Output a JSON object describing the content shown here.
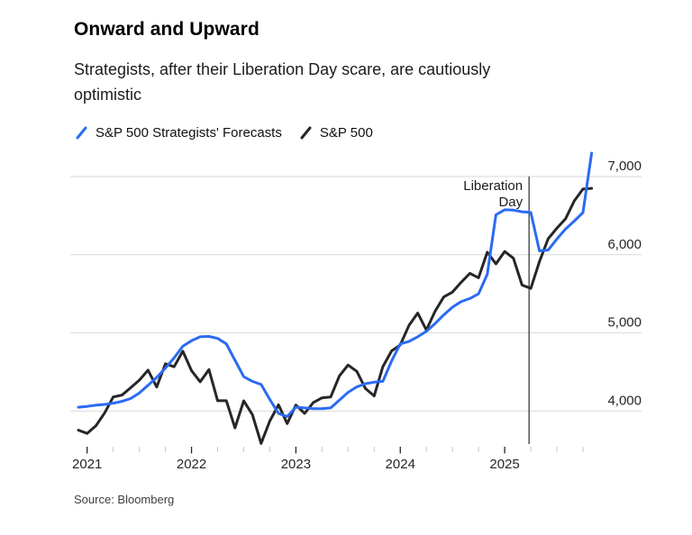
{
  "header": {
    "title": "Onward and Upward",
    "subtitle_lines": [
      "Strategists, after their Liberation Day scare, are cautiously",
      "optimistic"
    ]
  },
  "legend": {
    "items": [
      {
        "label": "S&P 500 Strategists' Forecasts",
        "icon": "slash-icon",
        "color": "#2b6bf2"
      },
      {
        "label": "S&P 500",
        "icon": "slash-icon",
        "color": "#262626"
      }
    ]
  },
  "source": "Source: Bloomberg",
  "chart_data": {
    "type": "line",
    "title": "Onward and Upward",
    "subtitle": "Strategists, after their Liberation Day scare, are cautiously optimistic",
    "x_start_month": "2020-12",
    "x_end_month": "2025-11",
    "points_per_series": 60,
    "x_tick_labels": [
      "2021",
      "2022",
      "2023",
      "2024",
      "2025"
    ],
    "x_minor_tick_interval_months": 3,
    "y_ticks": [
      4000,
      5000,
      6000,
      7000
    ],
    "y_tick_labels": [
      "4,000",
      "5,000",
      "6,000",
      "7,000"
    ],
    "ylim": [
      3500,
      7350
    ],
    "grid": "horizontal",
    "legend_position": "top-left",
    "annotation": {
      "text_lines": [
        "Liberation",
        "Day"
      ],
      "date": "2025-04-02",
      "month_index_from_start": 51.8,
      "line_color": "#000000"
    },
    "series": [
      {
        "name": "S&P 500 Strategists' Forecasts",
        "color": "#2b6bf2",
        "values": [
          4050,
          4060,
          4075,
          4085,
          4100,
          4125,
          4160,
          4230,
          4330,
          4430,
          4550,
          4680,
          4830,
          4900,
          4950,
          4955,
          4930,
          4860,
          4650,
          4440,
          4380,
          4340,
          4150,
          3970,
          3930,
          4050,
          4040,
          4030,
          4030,
          4040,
          4140,
          4240,
          4310,
          4350,
          4370,
          4380,
          4640,
          4860,
          4890,
          4950,
          5020,
          5120,
          5230,
          5330,
          5400,
          5440,
          5500,
          5750,
          6510,
          6575,
          6570,
          6550,
          6540,
          6050,
          6060,
          6200,
          6330,
          6430,
          6540,
          7300
        ]
      },
      {
        "name": "S&P 500",
        "color": "#262626",
        "values": [
          3756,
          3714,
          3811,
          3973,
          4181,
          4204,
          4298,
          4395,
          4523,
          4308,
          4605,
          4567,
          4766,
          4516,
          4374,
          4530,
          4132,
          4132,
          3785,
          4130,
          3955,
          3586,
          3872,
          4080,
          3840,
          4077,
          3970,
          4109,
          4169,
          4180,
          4450,
          4589,
          4508,
          4288,
          4194,
          4568,
          4770,
          4846,
          5096,
          5254,
          5036,
          5278,
          5460,
          5522,
          5648,
          5762,
          5705,
          6032,
          5882,
          6041,
          5955,
          5612,
          5569,
          5912,
          6205,
          6339,
          6460,
          6688,
          6840,
          6849
        ]
      }
    ]
  }
}
